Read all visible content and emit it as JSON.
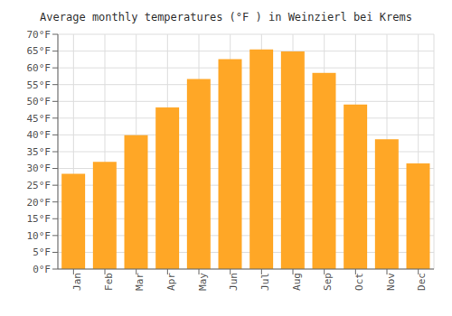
{
  "chart_data": {
    "type": "bar",
    "title": "Average monthly temperatures (°F ) in Weinzierl bei Krems",
    "categories": [
      "Jan",
      "Feb",
      "Mar",
      "Apr",
      "May",
      "Jun",
      "Jul",
      "Aug",
      "Sep",
      "Oct",
      "Nov",
      "Dec"
    ],
    "values": [
      28.4,
      32.0,
      39.9,
      48.2,
      56.7,
      62.6,
      65.5,
      64.9,
      58.5,
      49.1,
      38.7,
      31.5
    ],
    "color": "#FFA726",
    "ylim": [
      0,
      70
    ],
    "yticks": [
      {
        "value": 0,
        "label": "0°F"
      },
      {
        "value": 5,
        "label": "5°F"
      },
      {
        "value": 10,
        "label": "10°F"
      },
      {
        "value": 15,
        "label": "15°F"
      },
      {
        "value": 20,
        "label": "20°F"
      },
      {
        "value": 25,
        "label": "25°F"
      },
      {
        "value": 30,
        "label": "30°F"
      },
      {
        "value": 35,
        "label": "35°F"
      },
      {
        "value": 40,
        "label": "40°F"
      },
      {
        "value": 45,
        "label": "45°F"
      },
      {
        "value": 50,
        "label": "50°F"
      },
      {
        "value": 55,
        "label": "55°F"
      },
      {
        "value": 60,
        "label": "60°F"
      },
      {
        "value": 65,
        "label": "65°F"
      },
      {
        "value": 70,
        "label": "70°F"
      }
    ],
    "grid": true
  }
}
